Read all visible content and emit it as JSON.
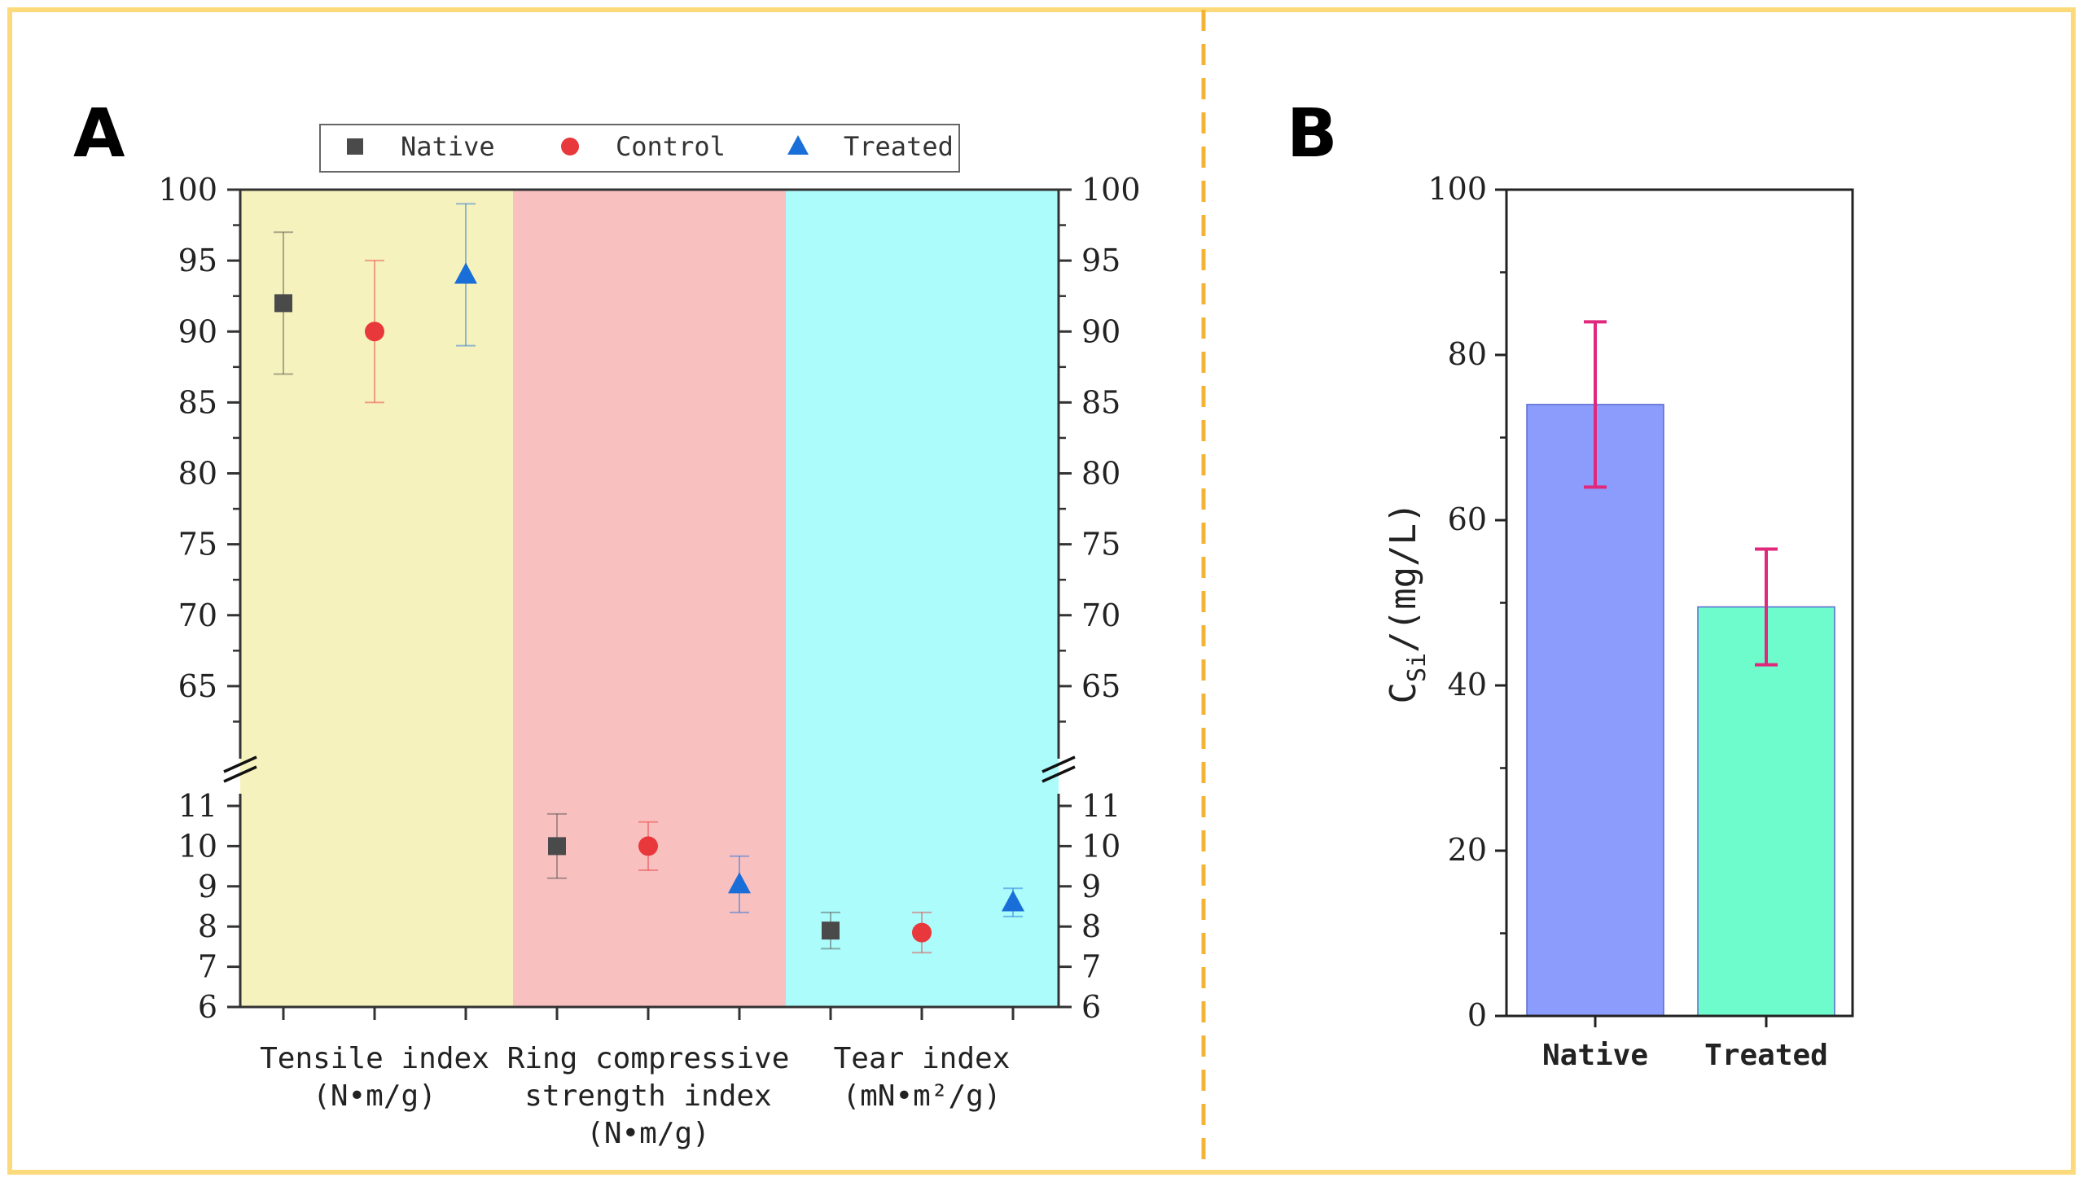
{
  "colors": {
    "frame": "#FCD97A",
    "divider": "#F5B335",
    "band_tensile": "#F6F2BD",
    "band_ring": "#F9C0C0",
    "band_tear": "#ACFCFB",
    "native": "#4A4A4A",
    "control": "#E8383B",
    "treated": "#1A6ED8",
    "bar_native": "#8C9CFC",
    "bar_treated": "#6FFCCC",
    "errbar_b": "#E0287C"
  },
  "panel_a": {
    "letter": "A",
    "legend": [
      {
        "name": "Native",
        "marker": "square"
      },
      {
        "name": "Control",
        "marker": "circle"
      },
      {
        "name": "Treated",
        "marker": "triangle"
      }
    ]
  },
  "panel_b": {
    "letter": "B"
  },
  "chart_data": [
    {
      "type": "scatter",
      "panel": "A",
      "title": "",
      "broken_axis": true,
      "ylim_lower": [
        6,
        11
      ],
      "ylim_upper": [
        60,
        100
      ],
      "yticks_lower": [
        6,
        7,
        8,
        9,
        10,
        11
      ],
      "yticks_upper": [
        65,
        70,
        75,
        80,
        85,
        90,
        95,
        100
      ],
      "groups": [
        {
          "label": [
            "Tensile index",
            "(N•m/g)"
          ]
        },
        {
          "label": [
            "Ring compressive",
            "strength index",
            "(N•m/g)"
          ]
        },
        {
          "label": [
            "Tear index",
            "(mN•m²/g)"
          ]
        }
      ],
      "series": [
        {
          "name": "Native",
          "values": [
            92,
            10.0,
            7.9
          ],
          "errors": [
            5,
            0.8,
            0.45
          ]
        },
        {
          "name": "Control",
          "values": [
            90,
            10.0,
            7.85
          ],
          "errors": [
            5,
            0.6,
            0.5
          ]
        },
        {
          "name": "Treated",
          "values": [
            94,
            9.05,
            8.6
          ],
          "errors": [
            5,
            0.7,
            0.35
          ]
        }
      ]
    },
    {
      "type": "bar",
      "panel": "B",
      "title": "",
      "categories": [
        "Native",
        "Treated"
      ],
      "values": [
        74,
        49.5
      ],
      "errors": [
        10,
        7
      ],
      "ylabel_main": "C",
      "ylabel_sub": "Si",
      "ylabel_rest": "/(mg/L)",
      "ylim": [
        0,
        100
      ],
      "yticks": [
        0,
        20,
        40,
        60,
        80,
        100
      ]
    }
  ]
}
